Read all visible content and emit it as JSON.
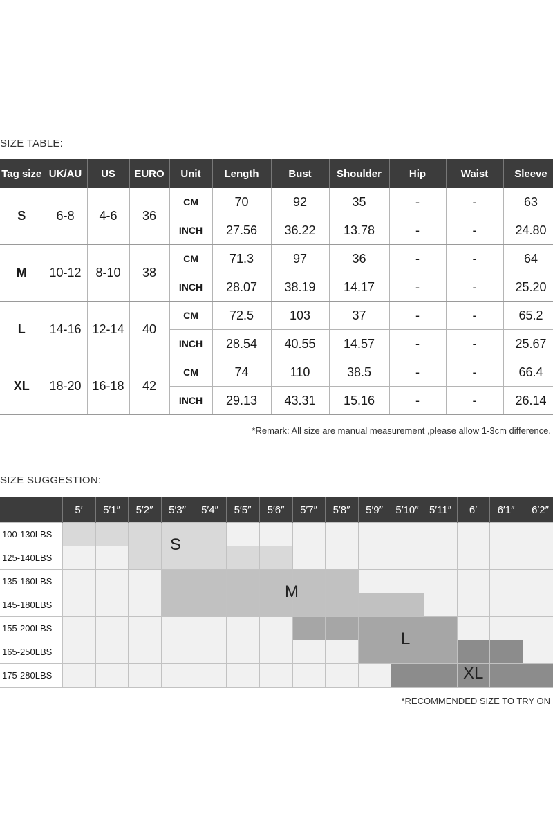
{
  "size_table": {
    "title": "SIZE TABLE:",
    "headers": [
      "Tag size",
      "UK/AU",
      "US",
      "EURO",
      "Unit",
      "Length",
      "Bust",
      "Shoulder",
      "Hip",
      "Waist",
      "Sleeve"
    ],
    "rows": [
      {
        "tag": "S",
        "uk": "6-8",
        "us": "4-6",
        "euro": "36",
        "cm": [
          "CM",
          "70",
          "92",
          "35",
          "-",
          "-",
          "63"
        ],
        "inch": [
          "INCH",
          "27.56",
          "36.22",
          "13.78",
          "-",
          "-",
          "24.80"
        ]
      },
      {
        "tag": "M",
        "uk": "10-12",
        "us": "8-10",
        "euro": "38",
        "cm": [
          "CM",
          "71.3",
          "97",
          "36",
          "-",
          "-",
          "64"
        ],
        "inch": [
          "INCH",
          "28.07",
          "38.19",
          "14.17",
          "-",
          "-",
          "25.20"
        ]
      },
      {
        "tag": "L",
        "uk": "14-16",
        "us": "12-14",
        "euro": "40",
        "cm": [
          "CM",
          "72.5",
          "103",
          "37",
          "-",
          "-",
          "65.2"
        ],
        "inch": [
          "INCH",
          "28.54",
          "40.55",
          "14.57",
          "-",
          "-",
          "25.67"
        ]
      },
      {
        "tag": "XL",
        "uk": "18-20",
        "us": "16-18",
        "euro": "42",
        "cm": [
          "CM",
          "74",
          "110",
          "38.5",
          "-",
          "-",
          "66.4"
        ],
        "inch": [
          "INCH",
          "29.13",
          "43.31",
          "15.16",
          "-",
          "-",
          "26.14"
        ]
      }
    ],
    "remark": "*Remark: All size are manual measurement ,please allow 1-3cm difference."
  },
  "size_suggestion": {
    "title": "SIZE SUGGESTION:",
    "heights": [
      "5′",
      "5′1″",
      "5′2″",
      "5′3″",
      "5′4″",
      "5′5″",
      "5′6″",
      "5′7″",
      "5′8″",
      "5′9″",
      "5′10″",
      "5′11″",
      "6′",
      "6′1″",
      "6′2″"
    ],
    "weights": [
      "100-130LBS",
      "125-140LBS",
      "135-160LBS",
      "145-180LBS",
      "155-200LBS",
      "165-250LBS",
      "175-280LBS"
    ],
    "zones": [
      [
        1,
        1,
        1,
        1,
        1,
        0,
        0,
        0,
        0,
        0,
        0,
        0,
        0,
        0,
        0
      ],
      [
        0,
        0,
        1,
        1,
        1,
        1,
        1,
        0,
        0,
        0,
        0,
        0,
        0,
        0,
        0
      ],
      [
        0,
        0,
        0,
        2,
        2,
        2,
        2,
        2,
        2,
        0,
        0,
        0,
        0,
        0,
        0
      ],
      [
        0,
        0,
        0,
        2,
        2,
        2,
        2,
        2,
        2,
        2,
        2,
        0,
        0,
        0,
        0
      ],
      [
        0,
        0,
        0,
        0,
        0,
        0,
        0,
        3,
        3,
        3,
        3,
        3,
        0,
        0,
        0
      ],
      [
        0,
        0,
        0,
        0,
        0,
        0,
        0,
        0,
        0,
        3,
        3,
        3,
        4,
        4,
        0
      ],
      [
        0,
        0,
        0,
        0,
        0,
        0,
        0,
        0,
        0,
        0,
        4,
        4,
        4,
        4,
        4
      ]
    ],
    "zone_colors": [
      "#f1f1f1",
      "#d9d9d9",
      "#c1c1c1",
      "#a6a6a6",
      "#8c8c8c"
    ],
    "zone_labels": [
      "S",
      "M",
      "L",
      "XL"
    ],
    "note": "*RECOMMENDED SIZE TO TRY ON"
  }
}
